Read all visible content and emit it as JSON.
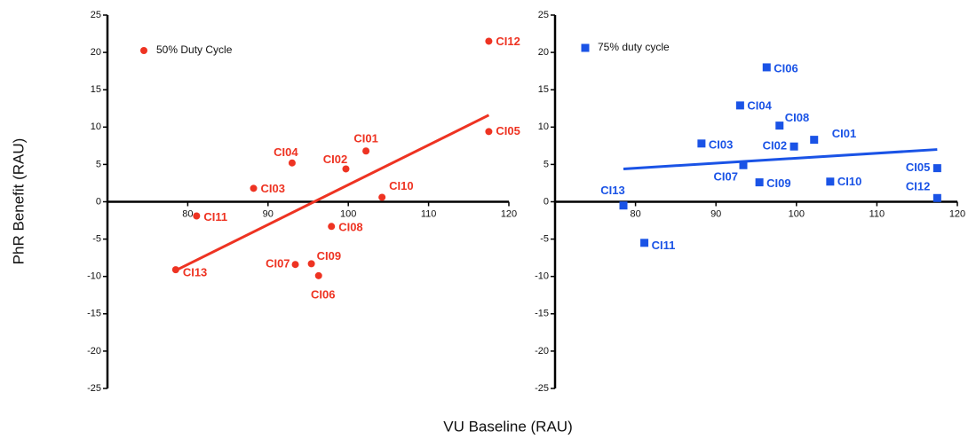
{
  "axis_labels": {
    "x": "VU Baseline (RAU)",
    "y": "PhR Benefit (RAU)"
  },
  "chart_data": [
    {
      "type": "scatter",
      "xlim": [
        70,
        120
      ],
      "ylim": [
        -25,
        25
      ],
      "xticks": [
        80,
        90,
        100,
        110,
        120
      ],
      "yticks": [
        -25,
        -20,
        -15,
        -10,
        -5,
        0,
        5,
        10,
        15,
        20,
        25
      ],
      "series": [
        {
          "name": "50% Duty Cycle",
          "color": "#ee3322",
          "marker": "circle",
          "labels": [
            "CI01",
            "CI02",
            "CI03",
            "CI04",
            "CI05",
            "CI06",
            "CI07",
            "CI08",
            "CI09",
            "CI10",
            "CI11",
            "CI12",
            "CI13"
          ],
          "x": [
            102.2,
            99.7,
            88.2,
            93.0,
            117.5,
            96.3,
            93.4,
            97.9,
            95.4,
            104.2,
            81.1,
            117.5,
            78.5
          ],
          "values": [
            6.8,
            4.4,
            1.8,
            5.2,
            9.4,
            -9.9,
            -8.4,
            -3.3,
            -8.3,
            0.6,
            -1.9,
            21.5,
            -9.1
          ]
        }
      ],
      "trend": {
        "x": [
          78.5,
          117.5
        ],
        "values": [
          -9.2,
          11.6
        ]
      }
    },
    {
      "type": "scatter",
      "xlim": [
        70,
        120
      ],
      "ylim": [
        -25,
        25
      ],
      "xticks": [
        80,
        90,
        100,
        110,
        120
      ],
      "yticks": [
        -25,
        -20,
        -15,
        -10,
        -5,
        0,
        5,
        10,
        15,
        20,
        25
      ],
      "series": [
        {
          "name": "75% duty cycle",
          "color": "#1a53e6",
          "marker": "square",
          "labels": [
            "CI01",
            "CI02",
            "CI03",
            "CI04",
            "CI05",
            "CI06",
            "CI07",
            "CI08",
            "CI09",
            "CI10",
            "CI11",
            "CI12",
            "CI13"
          ],
          "x": [
            102.2,
            99.7,
            88.2,
            93.0,
            117.5,
            96.3,
            93.4,
            97.9,
            95.4,
            104.2,
            81.1,
            117.5,
            78.5
          ],
          "values": [
            8.3,
            7.4,
            7.8,
            12.9,
            4.5,
            18.0,
            4.9,
            10.2,
            2.6,
            2.7,
            -5.5,
            0.5,
            -0.5
          ]
        }
      ],
      "trend": {
        "x": [
          78.5,
          117.5
        ],
        "values": [
          4.4,
          7.0
        ]
      }
    }
  ]
}
